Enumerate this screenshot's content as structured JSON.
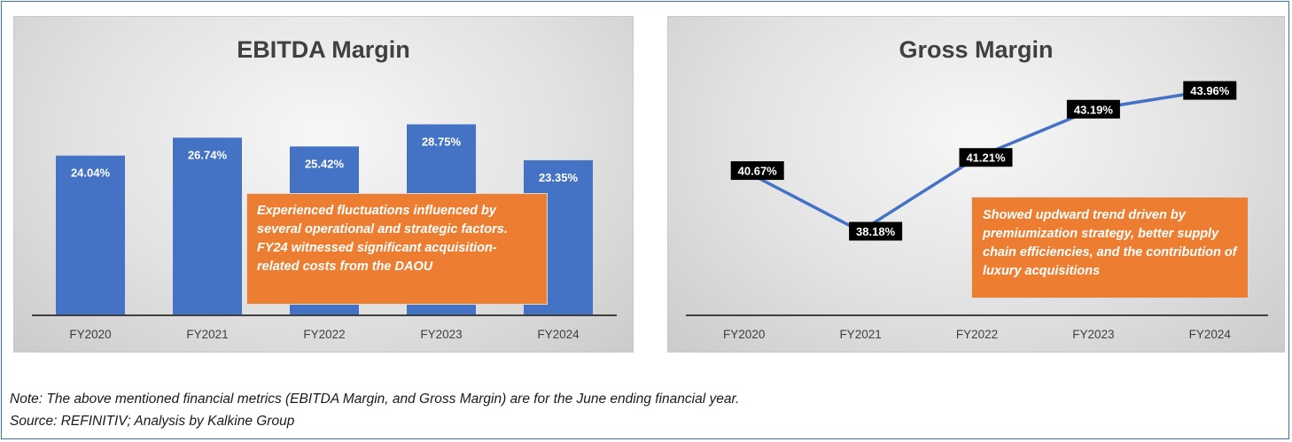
{
  "charts": {
    "ebitda": {
      "title": "EBITDA Margin",
      "callout": "Experienced fluctuations influenced by several operational and strategic factors. FY24 witnessed significant acquisition-related costs from the DAOU"
    },
    "gross": {
      "title": "Gross Margin",
      "callout": "Showed updward trend driven by premiumization strategy, better supply chain efficiencies, and the contribution of luxury acquisitions"
    }
  },
  "chart_data": [
    {
      "type": "bar",
      "title": "EBITDA Margin",
      "categories": [
        "FY2020",
        "FY2021",
        "FY2022",
        "FY2023",
        "FY2024"
      ],
      "values": [
        24.04,
        26.74,
        25.42,
        28.75,
        23.35
      ],
      "value_labels": [
        "24.04%",
        "26.74%",
        "25.42%",
        "28.75%",
        "23.35%"
      ],
      "ylim": [
        0,
        30
      ],
      "grid": false,
      "colors": {
        "bar": "#4472c4",
        "label": "#ffffff"
      }
    },
    {
      "type": "line",
      "title": "Gross Margin",
      "categories": [
        "FY2020",
        "FY2021",
        "FY2022",
        "FY2023",
        "FY2024"
      ],
      "values": [
        40.67,
        38.18,
        41.21,
        43.19,
        43.96
      ],
      "value_labels": [
        "40.67%",
        "38.18%",
        "41.21%",
        "43.19%",
        "43.96%"
      ],
      "ylim": [
        36.8,
        44.8
      ],
      "grid": false,
      "colors": {
        "line": "#4472c4",
        "label_bg": "#000000",
        "label": "#ffffff"
      }
    }
  ],
  "footer": {
    "note": "Note: The above mentioned financial metrics (EBITDA Margin, and Gross Margin) are for the June ending financial year.",
    "source": "Source: REFINITIV; Analysis by Kalkine Group"
  },
  "colors": {
    "frame": "#3d6fb6",
    "callout": "#ed7d31",
    "accent": "#4472c4"
  }
}
